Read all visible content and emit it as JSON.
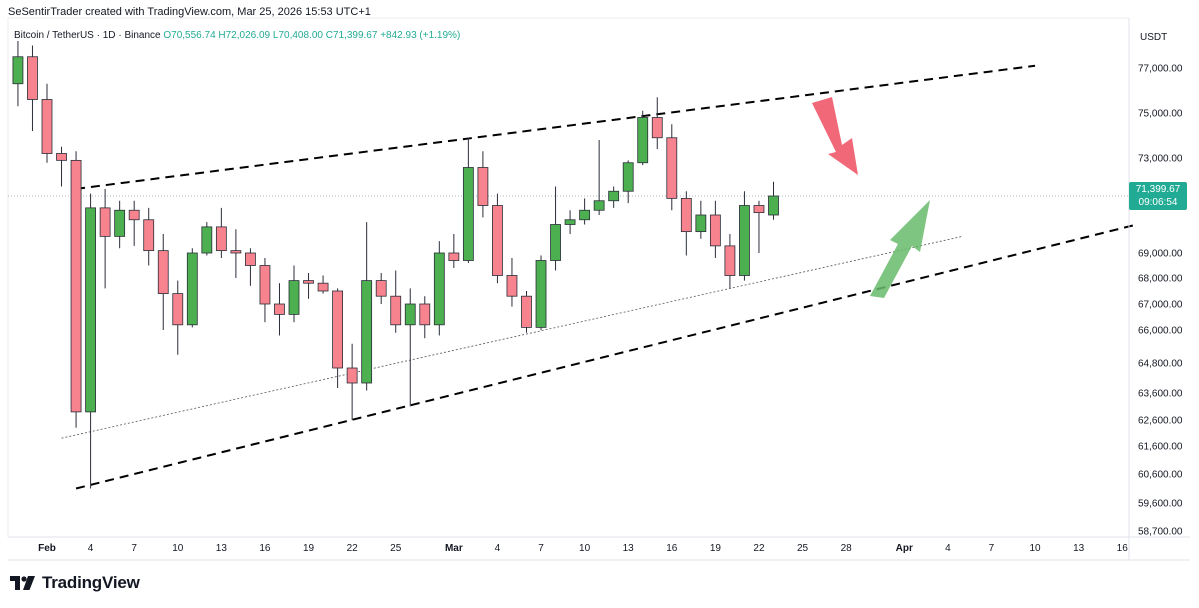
{
  "credit": "SeSentirTrader created with TradingView.com, Mar 25, 2026 15:53 UTC+1",
  "symbol": {
    "name": "Bitcoin",
    "pair": "TetherUS",
    "interval": "1D",
    "exchange": "Binance",
    "ohlc": "O70,556.74 H72,026.09 L70,408.00 C71,399.67",
    "change": "+842.93 (+1.19%)"
  },
  "currency": "USDT",
  "last_price": {
    "value": "71,399.67",
    "countdown": "09:06:54"
  },
  "brand": "TradingView",
  "colors": {
    "up": "#22ab94",
    "down": "#f23645",
    "up_candle": "#4caf50",
    "down_candle": "#f7838f",
    "arrow_down": "#f0596a",
    "arrow_up": "#66bb6a"
  },
  "chart_data": {
    "type": "candlestick",
    "interval": "1D",
    "y_ticks": [
      {
        "v": 58700,
        "label": "58,700.00"
      },
      {
        "v": 59600,
        "label": "59,600.00"
      },
      {
        "v": 60600,
        "label": "60,600.00"
      },
      {
        "v": 61600,
        "label": "61,600.00"
      },
      {
        "v": 62600,
        "label": "62,600.00"
      },
      {
        "v": 63600,
        "label": "63,600.00"
      },
      {
        "v": 64800,
        "label": "64,800.00"
      },
      {
        "v": 66000,
        "label": "66,000.00"
      },
      {
        "v": 67000,
        "label": "67,000.00"
      },
      {
        "v": 68000,
        "label": "68,000.00"
      },
      {
        "v": 69000,
        "label": "69,000.00"
      },
      {
        "v": 73000,
        "label": "73,000.00"
      },
      {
        "v": 75000,
        "label": "75,000.00"
      },
      {
        "v": 77000,
        "label": "77,000.00"
      }
    ],
    "x_labels": [
      {
        "day": 0,
        "label": "Feb",
        "bold": true
      },
      {
        "day": 3,
        "label": "4"
      },
      {
        "day": 6,
        "label": "7"
      },
      {
        "day": 9,
        "label": "10"
      },
      {
        "day": 12,
        "label": "13"
      },
      {
        "day": 15,
        "label": "16"
      },
      {
        "day": 18,
        "label": "19"
      },
      {
        "day": 21,
        "label": "22"
      },
      {
        "day": 24,
        "label": "25"
      },
      {
        "day": 28,
        "label": "Mar",
        "bold": true
      },
      {
        "day": 31,
        "label": "4"
      },
      {
        "day": 34,
        "label": "7"
      },
      {
        "day": 37,
        "label": "10"
      },
      {
        "day": 40,
        "label": "13"
      },
      {
        "day": 43,
        "label": "16"
      },
      {
        "day": 46,
        "label": "19"
      },
      {
        "day": 49,
        "label": "22"
      },
      {
        "day": 52,
        "label": "25"
      },
      {
        "day": 55,
        "label": "28"
      },
      {
        "day": 59,
        "label": "Apr",
        "bold": true
      },
      {
        "day": 62,
        "label": "4"
      },
      {
        "day": 65,
        "label": "7"
      },
      {
        "day": 68,
        "label": "10"
      },
      {
        "day": 71,
        "label": "13"
      },
      {
        "day": 74,
        "label": "16"
      }
    ],
    "candles": [
      {
        "day": -4,
        "o": 77500,
        "h": 78200,
        "l": 75800,
        "c": 77100
      },
      {
        "day": -3,
        "o": 77100,
        "h": 77900,
        "l": 75800,
        "c": 76300
      },
      {
        "day": -2,
        "o": 76300,
        "h": 78200,
        "l": 75300,
        "c": 77500
      },
      {
        "day": -1,
        "o": 77500,
        "h": 78000,
        "l": 74200,
        "c": 75600
      },
      {
        "day": 0,
        "o": 75600,
        "h": 76300,
        "l": 72800,
        "c": 73200
      },
      {
        "day": 1,
        "o": 73200,
        "h": 73500,
        "l": 71800,
        "c": 72900
      },
      {
        "day": 2,
        "o": 72900,
        "h": 73300,
        "l": 62300,
        "c": 62900
      },
      {
        "day": 3,
        "o": 62900,
        "h": 71500,
        "l": 60100,
        "c": 70900
      },
      {
        "day": 4,
        "o": 70900,
        "h": 71700,
        "l": 67600,
        "c": 69700
      },
      {
        "day": 5,
        "o": 69700,
        "h": 71200,
        "l": 69200,
        "c": 70800
      },
      {
        "day": 6,
        "o": 70800,
        "h": 71200,
        "l": 69300,
        "c": 70400
      },
      {
        "day": 7,
        "o": 70400,
        "h": 70900,
        "l": 68500,
        "c": 69100
      },
      {
        "day": 8,
        "o": 69100,
        "h": 69800,
        "l": 66000,
        "c": 67400
      },
      {
        "day": 9,
        "o": 67400,
        "h": 67900,
        "l": 65100,
        "c": 66200
      },
      {
        "day": 10,
        "o": 66200,
        "h": 69200,
        "l": 66100,
        "c": 69000
      },
      {
        "day": 11,
        "o": 69000,
        "h": 70300,
        "l": 68900,
        "c": 70100
      },
      {
        "day": 12,
        "o": 70100,
        "h": 70900,
        "l": 68800,
        "c": 69100
      },
      {
        "day": 13,
        "o": 69100,
        "h": 70000,
        "l": 68000,
        "c": 69000
      },
      {
        "day": 14,
        "o": 69000,
        "h": 69200,
        "l": 67700,
        "c": 68500
      },
      {
        "day": 15,
        "o": 68500,
        "h": 68800,
        "l": 66300,
        "c": 67000
      },
      {
        "day": 16,
        "o": 67000,
        "h": 67800,
        "l": 65800,
        "c": 66600
      },
      {
        "day": 17,
        "o": 66600,
        "h": 68500,
        "l": 66300,
        "c": 67900
      },
      {
        "day": 18,
        "o": 67900,
        "h": 68200,
        "l": 67200,
        "c": 67800
      },
      {
        "day": 19,
        "o": 67800,
        "h": 68100,
        "l": 67400,
        "c": 67500
      },
      {
        "day": 20,
        "o": 67500,
        "h": 67600,
        "l": 63800,
        "c": 64600
      },
      {
        "day": 21,
        "o": 64600,
        "h": 65500,
        "l": 62600,
        "c": 64000
      },
      {
        "day": 22,
        "o": 64000,
        "h": 70300,
        "l": 63700,
        "c": 67900
      },
      {
        "day": 23,
        "o": 67900,
        "h": 68200,
        "l": 67000,
        "c": 67300
      },
      {
        "day": 24,
        "o": 67300,
        "h": 68300,
        "l": 65900,
        "c": 66200
      },
      {
        "day": 25,
        "o": 66200,
        "h": 67600,
        "l": 63100,
        "c": 67000
      },
      {
        "day": 26,
        "o": 67000,
        "h": 67300,
        "l": 65700,
        "c": 66200
      },
      {
        "day": 27,
        "o": 66200,
        "h": 69500,
        "l": 65800,
        "c": 69000
      },
      {
        "day": 28,
        "o": 69000,
        "h": 69800,
        "l": 68400,
        "c": 68700
      },
      {
        "day": 29,
        "o": 68700,
        "h": 73900,
        "l": 68600,
        "c": 72600
      },
      {
        "day": 30,
        "o": 72600,
        "h": 73300,
        "l": 70500,
        "c": 71000
      },
      {
        "day": 31,
        "o": 71000,
        "h": 71500,
        "l": 67800,
        "c": 68100
      },
      {
        "day": 32,
        "o": 68100,
        "h": 68800,
        "l": 66900,
        "c": 67300
      },
      {
        "day": 33,
        "o": 67300,
        "h": 67500,
        "l": 65900,
        "c": 66100
      },
      {
        "day": 34,
        "o": 66100,
        "h": 68900,
        "l": 66000,
        "c": 68700
      },
      {
        "day": 35,
        "o": 68700,
        "h": 71800,
        "l": 68300,
        "c": 70200
      },
      {
        "day": 36,
        "o": 70200,
        "h": 70800,
        "l": 69800,
        "c": 70400
      },
      {
        "day": 37,
        "o": 70400,
        "h": 71300,
        "l": 70200,
        "c": 70800
      },
      {
        "day": 38,
        "o": 70800,
        "h": 73800,
        "l": 70600,
        "c": 71200
      },
      {
        "day": 39,
        "o": 71200,
        "h": 71800,
        "l": 70900,
        "c": 71600
      },
      {
        "day": 40,
        "o": 71600,
        "h": 72900,
        "l": 71100,
        "c": 72800
      },
      {
        "day": 41,
        "o": 72800,
        "h": 75100,
        "l": 72700,
        "c": 74800
      },
      {
        "day": 42,
        "o": 74800,
        "h": 75700,
        "l": 73400,
        "c": 73900
      },
      {
        "day": 43,
        "o": 73900,
        "h": 74500,
        "l": 70800,
        "c": 71300
      },
      {
        "day": 44,
        "o": 71300,
        "h": 71600,
        "l": 68900,
        "c": 69900
      },
      {
        "day": 45,
        "o": 69900,
        "h": 71200,
        "l": 69600,
        "c": 70600
      },
      {
        "day": 46,
        "o": 70600,
        "h": 71200,
        "l": 68800,
        "c": 69300
      },
      {
        "day": 47,
        "o": 69300,
        "h": 69800,
        "l": 67600,
        "c": 68100
      },
      {
        "day": 48,
        "o": 68100,
        "h": 71600,
        "l": 67900,
        "c": 71000
      },
      {
        "day": 49,
        "o": 71000,
        "h": 71200,
        "l": 69000,
        "c": 70700
      },
      {
        "day": 50,
        "o": 70600,
        "h": 72000,
        "l": 70400,
        "c": 71400
      }
    ],
    "channel_upper": {
      "p1": {
        "day": 2,
        "v": 71700
      },
      "p2": {
        "day": 68,
        "v": 77100
      }
    },
    "channel_lower": {
      "p1": {
        "day": 2,
        "v": 60100
      },
      "p2": {
        "day": 75,
        "v": 70200
      }
    },
    "inner_trendline": {
      "p1": {
        "day": 1,
        "v": 61900
      },
      "p2": {
        "day": 63,
        "v": 69700
      }
    },
    "last_close": 71399.67
  }
}
